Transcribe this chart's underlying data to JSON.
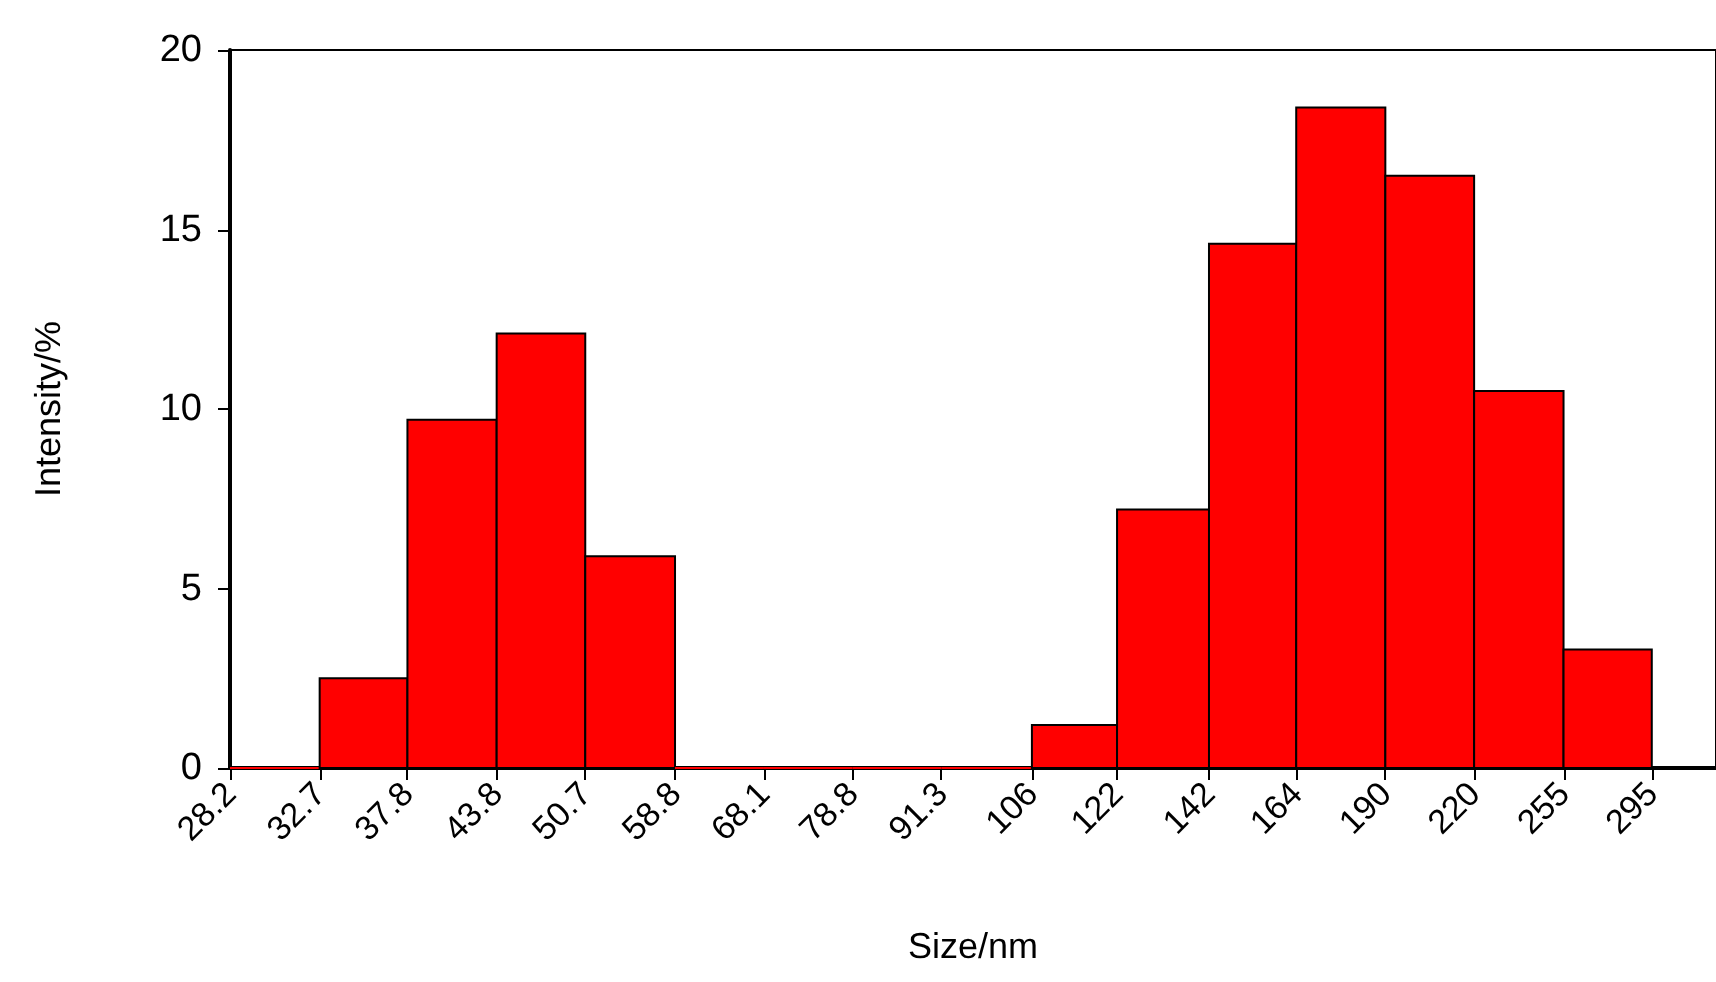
{
  "chart_data": {
    "type": "histogram",
    "xlabel": "Size/nm",
    "ylabel": "Intensity/%",
    "bins": [
      28.2,
      32.7,
      37.8,
      43.8,
      50.7,
      58.8,
      68.1,
      78.8,
      91.3,
      106,
      122,
      142,
      164,
      190,
      220,
      255,
      295
    ],
    "values": [
      0,
      2.5,
      9.7,
      12.1,
      5.9,
      0,
      0,
      0,
      0,
      1.2,
      7.2,
      14.6,
      18.4,
      16.5,
      10.5,
      3.3
    ],
    "color": "#ff0000",
    "log": "x",
    "xlim": [
      28.2,
      328
    ],
    "xticks": [
      28.2,
      32.7,
      37.8,
      43.8,
      50.7,
      58.8,
      68.1,
      78.8,
      91.3,
      106,
      122,
      142,
      164,
      190,
      220,
      255,
      295
    ],
    "ylim": [
      0,
      20
    ],
    "yticks": [
      0,
      5,
      10,
      15,
      20
    ],
    "grid": false
  }
}
